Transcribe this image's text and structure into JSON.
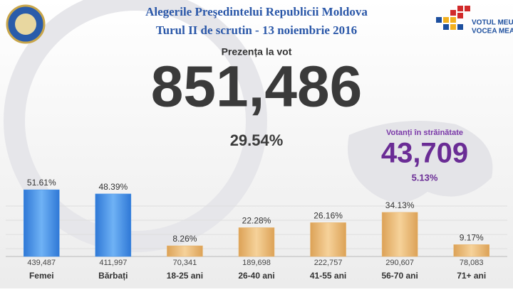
{
  "header": {
    "title_line1": "Alegerile Preşedintelui Republicii Moldova",
    "title_line2": "Turul II de scrutin - 13 noiembrie 2016",
    "slogan_line1": "VOTUL MEU,",
    "slogan_line2": "VOCEA MEA!"
  },
  "turnout": {
    "label": "Prezența la vot",
    "count": "851,486",
    "percent": "29.54%"
  },
  "abroad": {
    "label": "Votanți în străinătate",
    "count": "43,709",
    "percent": "5.13%"
  },
  "chart_data": {
    "type": "bar",
    "categories": [
      "Femei",
      "Bărbați",
      "18-25 ani",
      "26-40 ani",
      "41-55 ani",
      "56-70 ani",
      "71+ ani"
    ],
    "values": [
      51.61,
      48.39,
      8.26,
      22.28,
      26.16,
      34.13,
      9.17
    ],
    "value_labels": [
      "51.61%",
      "48.39%",
      "8.26%",
      "22.28%",
      "26.16%",
      "34.13%",
      "9.17%"
    ],
    "counts": [
      "439,487",
      "411,997",
      "70,341",
      "189,698",
      "222,757",
      "290,607",
      "78,083"
    ],
    "colors": [
      "#3f8ee6",
      "#3f8ee6",
      "#e8b46a",
      "#e8b46a",
      "#e8b46a",
      "#e8b46a",
      "#e8b46a"
    ]
  }
}
